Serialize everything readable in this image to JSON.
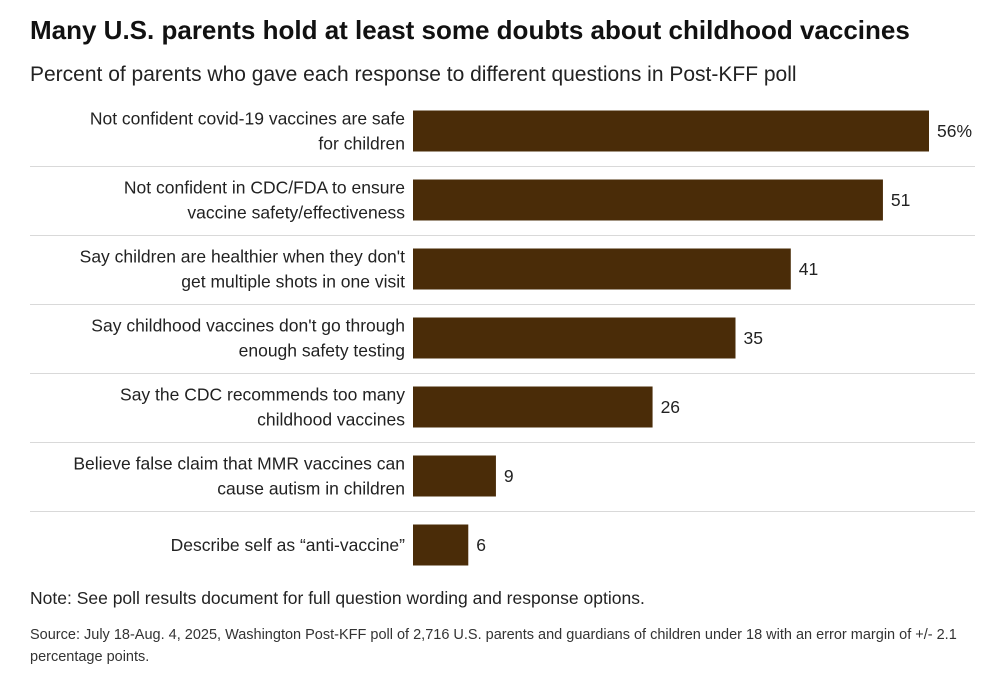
{
  "title": "Many U.S. parents hold at least some doubts about childhood vaccines",
  "subtitle": "Percent of parents who gave each response to different questions in Post-KFF poll",
  "note": "Note: See poll results document for full question wording and response options.",
  "source": "Source: July 18-Aug. 4, 2025, Washington Post-KFF poll of 2,716 U.S. parents and guardians of children under 18 with an error margin of +/- 2.1 percentage points.",
  "colors": {
    "bar": "#4a2c08",
    "divider": "#d9d9d9",
    "text": "#222222"
  },
  "chart_data": {
    "type": "bar",
    "orientation": "horizontal",
    "categories": [
      [
        "Not confident covid-19 vaccines are safe",
        "for children"
      ],
      [
        "Not confident in CDC/FDA to ensure",
        "vaccine safety/effectiveness"
      ],
      [
        "Say children are healthier when they don't",
        "get multiple shots in one visit"
      ],
      [
        "Say childhood vaccines don't go through",
        "enough safety testing"
      ],
      [
        "Say the CDC recommends too many",
        "childhood vaccines"
      ],
      [
        "Believe false claim that MMR vaccines can",
        "cause autism in children"
      ],
      [
        "Describe self as “anti-vaccine”"
      ]
    ],
    "values": [
      56,
      51,
      41,
      35,
      26,
      9,
      6
    ],
    "value_labels": [
      "56%",
      "51",
      "41",
      "35",
      "26",
      "9",
      "6"
    ],
    "xlim": [
      0,
      56
    ],
    "unit": "%",
    "grid": false
  }
}
